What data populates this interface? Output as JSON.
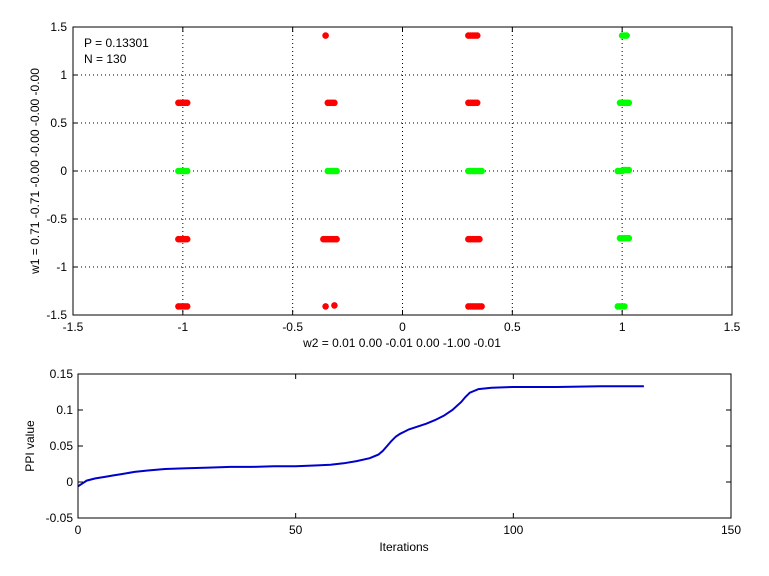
{
  "chart_data": [
    {
      "type": "scatter",
      "xlabel": "w2 = 0.01  0.00  -0.01  0.00  -1.00  -0.01",
      "ylabel": "w1 = 0.71  -0.71  -0.00  -0.00  -0.00  -0.00",
      "xlim": [
        -1.5,
        1.5
      ],
      "ylim": [
        -1.5,
        1.5
      ],
      "xticks": [
        -1.5,
        -1,
        -0.5,
        0,
        0.5,
        1,
        1.5
      ],
      "yticks": [
        -1.5,
        -1,
        -0.5,
        0,
        0.5,
        1,
        1.5
      ],
      "xtick_labels": [
        "-1.5",
        "-1",
        "-0.5",
        "0",
        "0.5",
        "1",
        "1.5"
      ],
      "ytick_labels": [
        "-1.5",
        "-1",
        "-0.5",
        "0",
        "0.5",
        "1",
        "1.5"
      ],
      "grid": true,
      "annotations": [
        "P = 0.13301",
        "N = 130"
      ],
      "series_colors": {
        "red": "#ff0000",
        "green": "#00ff00"
      },
      "series": [
        {
          "color": "red",
          "points": [
            [
              -0.35,
              1.41
            ],
            [
              0.3,
              1.41
            ],
            [
              0.31,
              1.41
            ],
            [
              0.32,
              1.41
            ],
            [
              0.33,
              1.41
            ],
            [
              0.34,
              1.41
            ],
            [
              -1.02,
              0.71
            ],
            [
              -1.01,
              0.71
            ],
            [
              -1.0,
              0.71
            ],
            [
              -0.99,
              0.71
            ],
            [
              -0.98,
              0.71
            ],
            [
              -0.34,
              0.71
            ],
            [
              -0.33,
              0.71
            ],
            [
              -0.32,
              0.71
            ],
            [
              -0.31,
              0.71
            ],
            [
              0.3,
              0.71
            ],
            [
              0.31,
              0.71
            ],
            [
              0.32,
              0.71
            ],
            [
              0.33,
              0.71
            ],
            [
              0.34,
              0.71
            ],
            [
              -1.02,
              -0.71
            ],
            [
              -1.01,
              -0.71
            ],
            [
              -1.0,
              -0.71
            ],
            [
              -0.99,
              -0.71
            ],
            [
              -0.98,
              -0.71
            ],
            [
              -0.36,
              -0.71
            ],
            [
              -0.35,
              -0.71
            ],
            [
              -0.34,
              -0.71
            ],
            [
              -0.33,
              -0.71
            ],
            [
              -0.32,
              -0.71
            ],
            [
              -0.31,
              -0.71
            ],
            [
              -0.3,
              -0.71
            ],
            [
              0.3,
              -0.71
            ],
            [
              0.31,
              -0.71
            ],
            [
              0.32,
              -0.71
            ],
            [
              0.33,
              -0.71
            ],
            [
              0.34,
              -0.71
            ],
            [
              0.35,
              -0.71
            ],
            [
              -1.02,
              -1.41
            ],
            [
              -1.01,
              -1.41
            ],
            [
              -1.0,
              -1.41
            ],
            [
              -0.99,
              -1.41
            ],
            [
              -0.98,
              -1.41
            ],
            [
              -0.35,
              -1.41
            ],
            [
              -0.31,
              -1.4
            ],
            [
              0.3,
              -1.41
            ],
            [
              0.31,
              -1.41
            ],
            [
              0.32,
              -1.41
            ],
            [
              0.33,
              -1.41
            ],
            [
              0.34,
              -1.41
            ],
            [
              0.35,
              -1.41
            ],
            [
              0.36,
              -1.41
            ]
          ]
        },
        {
          "color": "green",
          "points": [
            [
              1.0,
              1.41
            ],
            [
              1.01,
              1.41
            ],
            [
              1.02,
              1.41
            ],
            [
              0.99,
              0.71
            ],
            [
              1.0,
              0.71
            ],
            [
              1.01,
              0.71
            ],
            [
              1.02,
              0.71
            ],
            [
              1.03,
              0.71
            ],
            [
              -1.02,
              0.0
            ],
            [
              -1.01,
              0.0
            ],
            [
              -1.0,
              0.0
            ],
            [
              -0.99,
              0.0
            ],
            [
              -0.98,
              0.0
            ],
            [
              -0.34,
              0.0
            ],
            [
              -0.33,
              0.0
            ],
            [
              -0.32,
              0.0
            ],
            [
              -0.31,
              0.0
            ],
            [
              -0.3,
              0.0
            ],
            [
              0.3,
              0.0
            ],
            [
              0.31,
              0.0
            ],
            [
              0.32,
              0.0
            ],
            [
              0.33,
              0.0
            ],
            [
              0.34,
              0.0
            ],
            [
              0.35,
              0.0
            ],
            [
              0.36,
              0.0
            ],
            [
              0.98,
              0.0
            ],
            [
              0.99,
              0.0
            ],
            [
              1.0,
              0.0
            ],
            [
              1.01,
              0.01
            ],
            [
              1.02,
              0.01
            ],
            [
              1.03,
              0.01
            ],
            [
              0.99,
              -0.7
            ],
            [
              1.0,
              -0.7
            ],
            [
              1.01,
              -0.7
            ],
            [
              1.02,
              -0.7
            ],
            [
              1.03,
              -0.7
            ],
            [
              0.98,
              -1.41
            ],
            [
              0.99,
              -1.41
            ],
            [
              1.0,
              -1.41
            ],
            [
              1.01,
              -1.41
            ]
          ]
        }
      ]
    },
    {
      "type": "line",
      "xlabel": "Iterations",
      "ylabel": "PPI value",
      "xlim": [
        0,
        150
      ],
      "ylim": [
        -0.05,
        0.15
      ],
      "xticks": [
        0,
        50,
        100,
        150
      ],
      "yticks": [
        -0.05,
        0,
        0.05,
        0.1,
        0.15
      ],
      "xtick_labels": [
        "0",
        "50",
        "100",
        "150"
      ],
      "ytick_labels": [
        "-0.05",
        "0",
        "0.05",
        "0.1",
        "0.15"
      ],
      "grid": false,
      "line_color": "#0000cc",
      "x": [
        0,
        1,
        2,
        4,
        6,
        8,
        10,
        13,
        16,
        20,
        25,
        30,
        35,
        40,
        45,
        50,
        55,
        58,
        61,
        64,
        67,
        69,
        70,
        71,
        72,
        73,
        74,
        75,
        76,
        78,
        80,
        82,
        84,
        86,
        88,
        89,
        90,
        92,
        95,
        100,
        110,
        120,
        130
      ],
      "y": [
        -0.006,
        -0.002,
        0.002,
        0.005,
        0.007,
        0.009,
        0.011,
        0.014,
        0.016,
        0.018,
        0.019,
        0.02,
        0.021,
        0.021,
        0.022,
        0.022,
        0.023,
        0.024,
        0.026,
        0.029,
        0.033,
        0.038,
        0.043,
        0.05,
        0.057,
        0.063,
        0.067,
        0.07,
        0.073,
        0.077,
        0.081,
        0.086,
        0.092,
        0.1,
        0.111,
        0.118,
        0.124,
        0.129,
        0.131,
        0.132,
        0.132,
        0.133,
        0.133
      ]
    }
  ]
}
